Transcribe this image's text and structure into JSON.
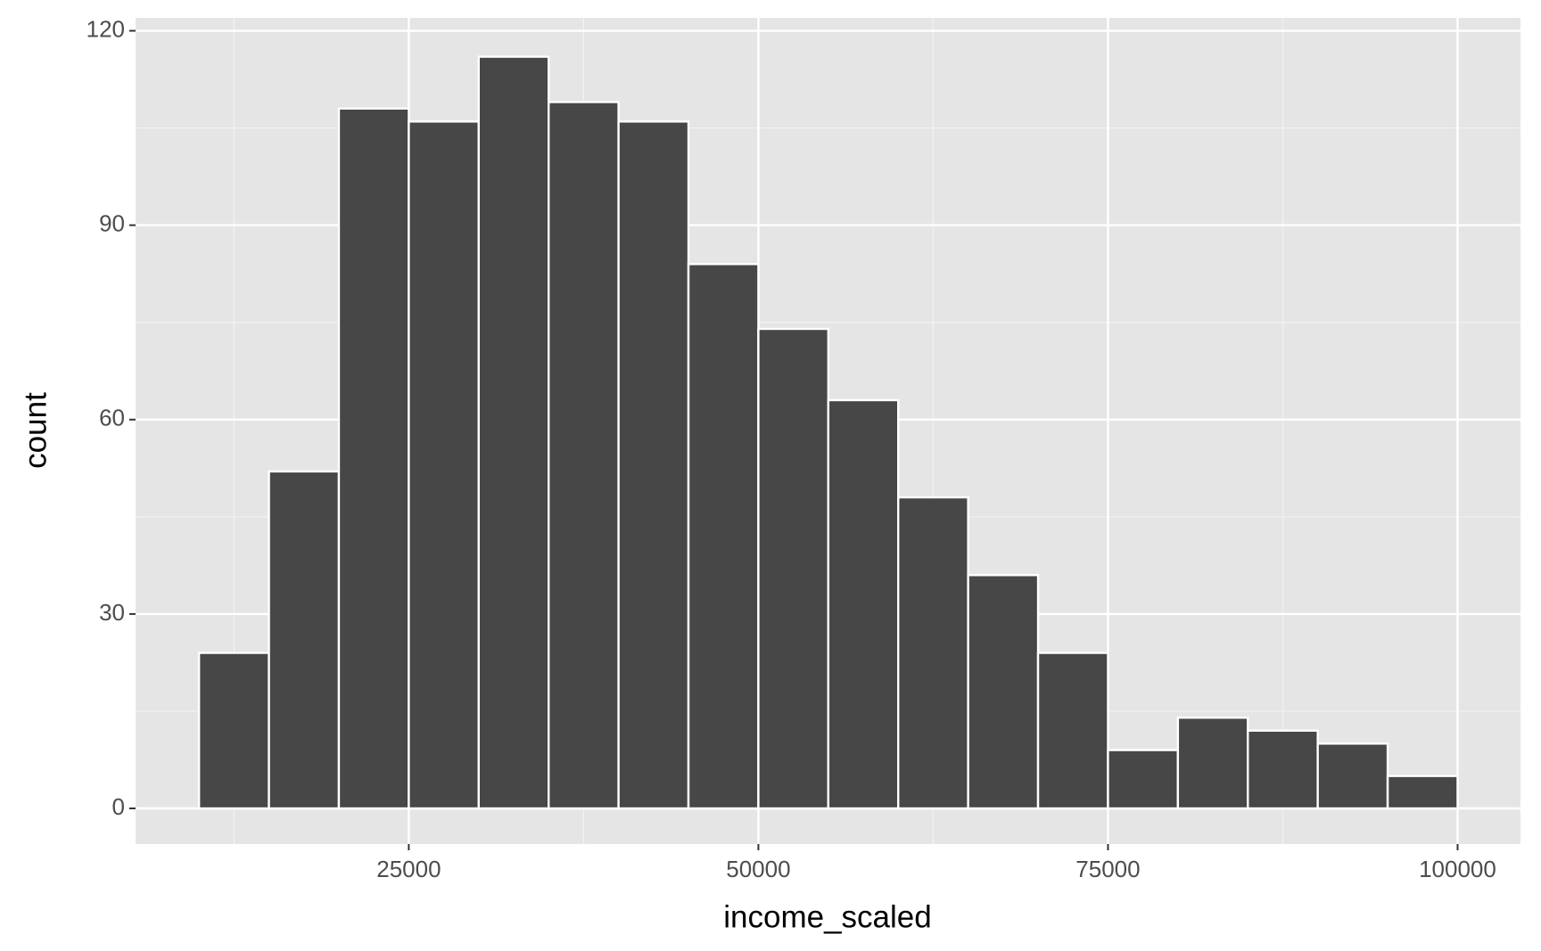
{
  "chart_data": {
    "type": "histogram",
    "x_label": "income_scaled",
    "y_label": "count",
    "bins": [
      10000,
      15000,
      20000,
      25000,
      30000,
      35000,
      40000,
      45000,
      50000,
      55000,
      60000,
      65000,
      70000,
      75000,
      80000,
      85000,
      90000,
      95000,
      100000
    ],
    "counts": [
      24,
      52,
      108,
      106,
      116,
      109,
      106,
      84,
      74,
      63,
      48,
      36,
      24,
      9,
      14,
      12,
      10,
      5
    ],
    "color": "#474747",
    "xlim": [
      5461,
      104498
    ],
    "ylim": [
      -5.5,
      122
    ],
    "xticks": [
      25000,
      50000,
      75000,
      100000
    ],
    "yticks": [
      0,
      30,
      60,
      90,
      120
    ],
    "grid": true
  }
}
